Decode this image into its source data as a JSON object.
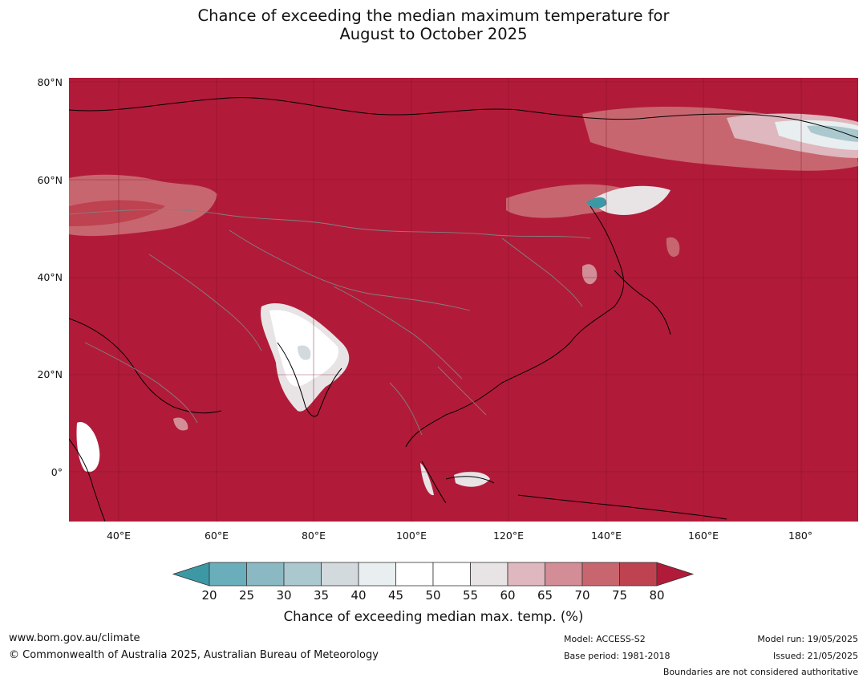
{
  "title": {
    "line1": "Chance of exceeding the median maximum temperature for",
    "line2": "August to October 2025"
  },
  "map": {
    "lat_labels": [
      "80°N",
      "60°N",
      "40°N",
      "20°N",
      "0°"
    ],
    "lon_labels": [
      "40°E",
      "60°E",
      "80°E",
      "100°E",
      "120°E",
      "140°E",
      "160°E",
      "180°"
    ],
    "background_color": "#b11b39",
    "coastline_color": "#000000",
    "border_color": "#808080"
  },
  "colorbar": {
    "ticks": [
      "20",
      "25",
      "30",
      "35",
      "40",
      "45",
      "50",
      "55",
      "60",
      "65",
      "70",
      "75",
      "80"
    ],
    "colors": [
      "#3d98a6",
      "#6aaebb",
      "#8ab9c4",
      "#abc8ce",
      "#d2dadd",
      "#e9eef0",
      "#ffffff",
      "#ffffff",
      "#e8e3e5",
      "#dfb7be",
      "#d38d97",
      "#c8666f",
      "#be4250",
      "#b11b39"
    ],
    "label": "Chance of exceeding median max. temp. (%)"
  },
  "footer": {
    "website": "www.bom.gov.au/climate",
    "copyright": "© Commonwealth of Australia 2025, Australian Bureau of Meteorology",
    "model": "Model: ACCESS-S2",
    "base_period": "Base period: 1981-2018",
    "model_run": "Model run: 19/05/2025",
    "issued": "Issued: 21/05/2025",
    "disclaimer": "Boundaries are not considered authoritative"
  }
}
